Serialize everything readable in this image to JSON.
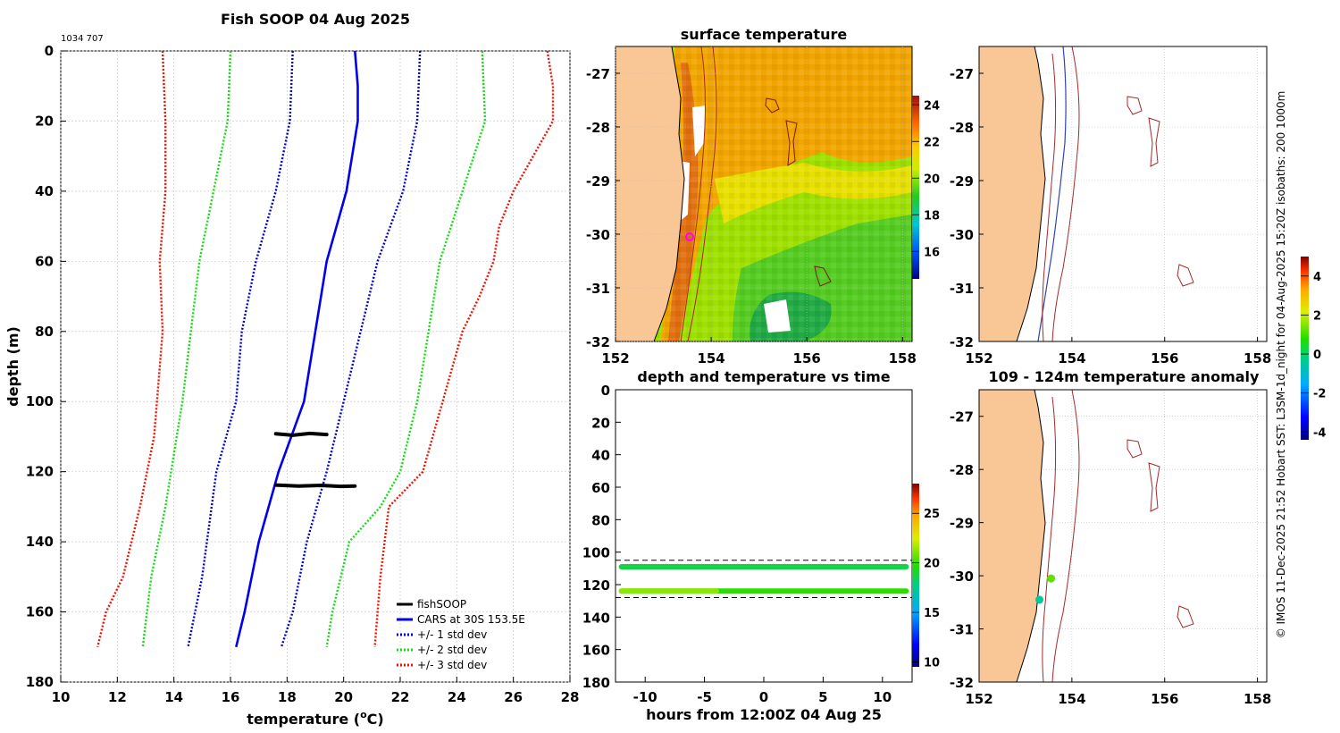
{
  "main_title": "Fish SOOP 04 Aug 2025",
  "corner_id": "1034 707",
  "side_caption": "© IMOS 11-Dec-2025 21:52 Hobart SST: L3SM-1d_night for 04-Aug-2025 15:20Z isobaths: 200  1000m",
  "colors": {
    "land": "#f9c796",
    "fish": "#000000",
    "cars": "#0000ee",
    "std1": "#0000cc",
    "std2": "#11dd11",
    "std3": "#ee1100",
    "isobath_200": "#a52a2a",
    "isobath_1000": "#3344aa",
    "marker": "#ff00ff"
  },
  "chart_data": [
    {
      "id": "profile",
      "type": "line",
      "title": "",
      "xlabel": "temperature (°C)",
      "xlabel_parts": {
        "pre": "temperature (",
        "sup": "o",
        "post": "C)"
      },
      "ylabel": "depth (m)",
      "xlim": [
        10,
        28
      ],
      "ylim": [
        180,
        0
      ],
      "xticks": [
        "10",
        "12",
        "14",
        "16",
        "18",
        "20",
        "22",
        "24",
        "26",
        "28"
      ],
      "yticks": [
        "0",
        "20",
        "40",
        "60",
        "80",
        "100",
        "120",
        "140",
        "160",
        "180"
      ],
      "grid": true,
      "legend_position": "bottom-right",
      "legend": [
        "fishSOOP",
        "CARS at 30S 153.5E",
        "+/- 1 std dev",
        "+/- 2 std dev",
        "+/- 3 std dev"
      ],
      "series": [
        {
          "name": "CARS at 30S 153.5E",
          "style": "solid",
          "color_key": "cars",
          "points": [
            [
              20.4,
              0
            ],
            [
              20.5,
              10
            ],
            [
              20.5,
              20
            ],
            [
              20.1,
              40
            ],
            [
              19.4,
              60
            ],
            [
              19.0,
              80
            ],
            [
              18.6,
              100
            ],
            [
              17.7,
              120
            ],
            [
              17.0,
              140
            ],
            [
              16.5,
              160
            ],
            [
              16.2,
              170
            ]
          ]
        },
        {
          "name": "-1 std dev",
          "style": "dotted",
          "color_key": "std1",
          "points": [
            [
              18.2,
              0
            ],
            [
              18.1,
              20
            ],
            [
              17.6,
              40
            ],
            [
              16.9,
              60
            ],
            [
              16.4,
              80
            ],
            [
              16.2,
              100
            ],
            [
              15.5,
              120
            ],
            [
              15.0,
              150
            ],
            [
              14.5,
              170
            ]
          ]
        },
        {
          "name": "+1 std dev",
          "style": "dotted",
          "color_key": "std1",
          "points": [
            [
              22.7,
              0
            ],
            [
              22.6,
              20
            ],
            [
              22.1,
              40
            ],
            [
              21.2,
              60
            ],
            [
              20.6,
              80
            ],
            [
              20.0,
              100
            ],
            [
              19.4,
              120
            ],
            [
              18.7,
              140
            ],
            [
              18.2,
              160
            ],
            [
              17.8,
              170
            ]
          ]
        },
        {
          "name": "-2 std dev",
          "style": "dotted",
          "color_key": "std2",
          "points": [
            [
              16.0,
              0
            ],
            [
              15.9,
              20
            ],
            [
              15.4,
              40
            ],
            [
              14.9,
              60
            ],
            [
              14.6,
              80
            ],
            [
              14.3,
              100
            ],
            [
              14.1,
              110
            ],
            [
              13.7,
              130
            ],
            [
              13.2,
              150
            ],
            [
              12.9,
              170
            ]
          ]
        },
        {
          "name": "+2 std dev",
          "style": "dotted",
          "color_key": "std2",
          "points": [
            [
              24.9,
              0
            ],
            [
              25.0,
              20
            ],
            [
              24.2,
              40
            ],
            [
              23.4,
              60
            ],
            [
              23.0,
              80
            ],
            [
              22.6,
              100
            ],
            [
              22.0,
              120
            ],
            [
              21.3,
              130
            ],
            [
              20.2,
              140
            ],
            [
              19.6,
              160
            ],
            [
              19.4,
              170
            ]
          ]
        },
        {
          "name": "-3 std dev",
          "style": "dotted",
          "color_key": "std3",
          "points": [
            [
              13.6,
              0
            ],
            [
              13.7,
              20
            ],
            [
              13.7,
              40
            ],
            [
              13.5,
              60
            ],
            [
              13.6,
              80
            ],
            [
              13.4,
              100
            ],
            [
              13.3,
              110
            ],
            [
              12.8,
              130
            ],
            [
              12.2,
              150
            ],
            [
              11.6,
              160
            ],
            [
              11.3,
              170
            ]
          ]
        },
        {
          "name": "+3 std dev",
          "style": "dotted",
          "color_key": "std3",
          "points": [
            [
              27.2,
              0
            ],
            [
              27.4,
              10
            ],
            [
              27.4,
              20
            ],
            [
              26.7,
              30
            ],
            [
              26.0,
              40
            ],
            [
              25.5,
              50
            ],
            [
              25.3,
              60
            ],
            [
              24.8,
              70
            ],
            [
              24.2,
              80
            ],
            [
              23.5,
              100
            ],
            [
              22.8,
              120
            ],
            [
              21.6,
              130
            ],
            [
              21.3,
              150
            ],
            [
              21.1,
              170
            ]
          ]
        },
        {
          "name": "fishSOOP",
          "style": "thick",
          "color_key": "fish",
          "points": [
            [
              17.6,
              109.2
            ],
            [
              18.2,
              109.6
            ],
            [
              18.8,
              109.1
            ],
            [
              19.4,
              109.4
            ]
          ]
        },
        {
          "name": "fishSOOP",
          "style": "thick",
          "color_key": "fish",
          "points": [
            [
              17.6,
              123.8
            ],
            [
              18.4,
              124.1
            ],
            [
              19.2,
              123.9
            ],
            [
              19.9,
              124.2
            ],
            [
              20.4,
              124.1
            ]
          ]
        }
      ]
    },
    {
      "id": "sst_map",
      "type": "heatmap",
      "title": "surface temperature",
      "xlim": [
        152,
        158.2
      ],
      "ylim": [
        -32,
        -26.5
      ],
      "xticks": [
        "152",
        "154",
        "156",
        "158"
      ],
      "yticks": [
        "-27",
        "-28",
        "-29",
        "-30",
        "-31",
        "-32"
      ],
      "colorbar": {
        "range": [
          14.5,
          24.5
        ],
        "ticks": [
          "16",
          "18",
          "20",
          "22",
          "24"
        ]
      },
      "station": {
        "lon": 153.55,
        "lat": -30.05
      }
    },
    {
      "id": "depth_time",
      "type": "scatter",
      "title": "depth and temperature vs time",
      "xlabel": "hours from 12:00Z 04 Aug 25",
      "xlim": [
        -12.5,
        12.5
      ],
      "ylim": [
        180,
        0
      ],
      "xticks": [
        "-10",
        "-5",
        "0",
        "5",
        "10"
      ],
      "yticks": [
        "0",
        "20",
        "40",
        "60",
        "80",
        "100",
        "120",
        "140",
        "160",
        "180"
      ],
      "reference_depths": [
        105,
        128
      ],
      "colorbar": {
        "range": [
          9.5,
          28
        ],
        "ticks": [
          "10",
          "15",
          "20",
          "25"
        ]
      },
      "tracks": [
        {
          "depth": 109,
          "temperature": 18.7
        },
        {
          "depth": 124,
          "temperature": 19.8
        }
      ]
    },
    {
      "id": "isobath_map",
      "type": "map",
      "title": "",
      "xlim": [
        152,
        158.2
      ],
      "ylim": [
        -32,
        -26.5
      ],
      "xticks": [
        "152",
        "154",
        "156",
        "158"
      ],
      "yticks": [
        "-27",
        "-28",
        "-29",
        "-30",
        "-31",
        "-32"
      ],
      "isobaths": [
        "200",
        "1000m"
      ]
    },
    {
      "id": "anomaly_map",
      "type": "scatter",
      "title": "109 - 124m temperature anomaly",
      "xlim": [
        152,
        158.2
      ],
      "ylim": [
        -32,
        -26.5
      ],
      "xticks": [
        "152",
        "154",
        "156",
        "158"
      ],
      "yticks": [
        "-27",
        "-28",
        "-29",
        "-30",
        "-31",
        "-32"
      ],
      "colorbar": {
        "range": [
          -4.4,
          5
        ],
        "ticks": [
          "4",
          "2",
          "0",
          "-2",
          "-4"
        ]
      },
      "points": [
        {
          "lon": 153.55,
          "lat": -30.05,
          "anomaly": 1.2
        },
        {
          "lon": 153.3,
          "lat": -30.45,
          "anomaly": -0.4
        }
      ]
    }
  ]
}
